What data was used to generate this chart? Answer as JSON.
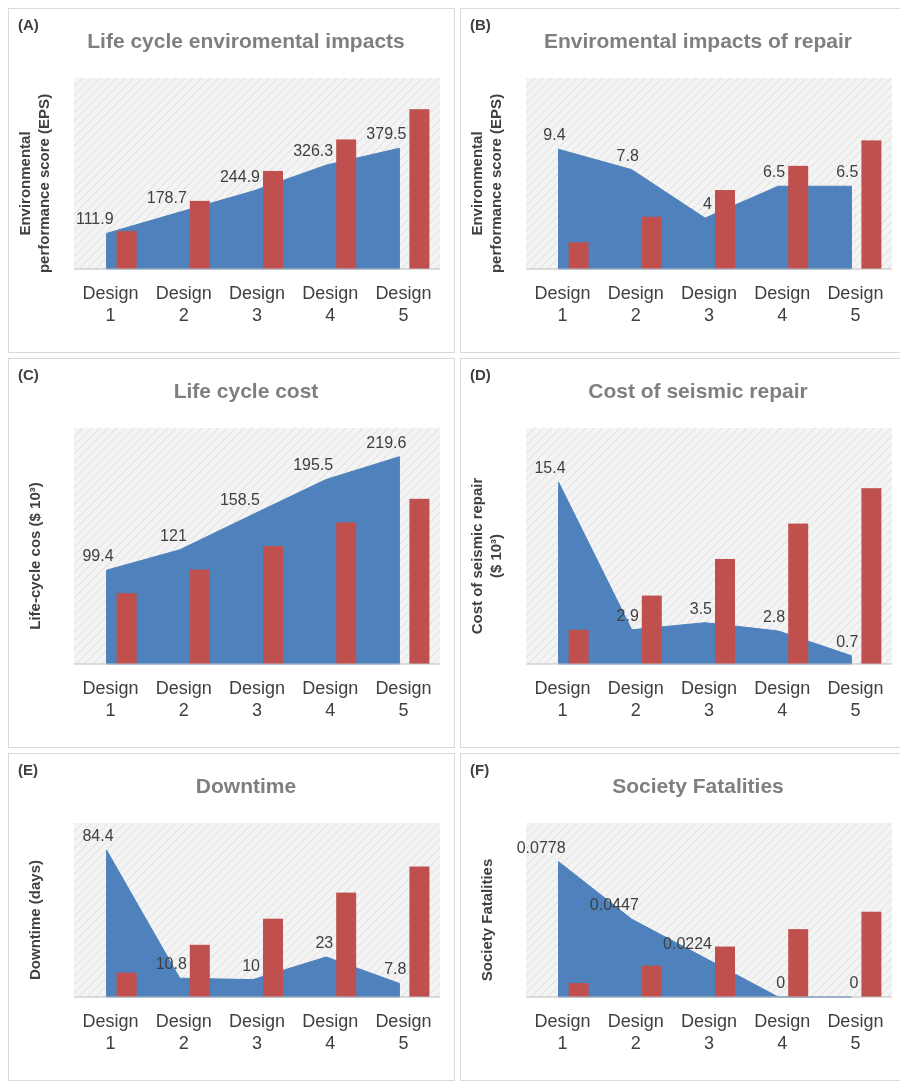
{
  "chart_data": [
    {
      "type": "bar",
      "title": "Life cycle enviromental impacts",
      "ylabel": "Environmental performance score (EPS)",
      "annotations": [
        "(A)"
      ],
      "ylim": [
        0,
        600
      ],
      "categories": [
        "Design 1",
        "Design 2",
        "Design 3",
        "Design 4",
        "Design 5"
      ],
      "series": [
        {
          "type": "area",
          "color": "#4f81bd",
          "values": [
            111.9,
            178.7,
            244.9,
            326.3,
            379.5
          ],
          "value_labels": [
            "111.9",
            "178.7",
            "244.9",
            "326.3",
            "379.5"
          ]
        },
        {
          "color": "#c0504d",
          "values": [
            119,
            214,
            308,
            407,
            502
          ]
        }
      ]
    },
    {
      "type": "bar",
      "title": "Enviromental impacts of repair",
      "ylabel": "Environmental performance score (EPS)",
      "annotations": [
        "(B)"
      ],
      "ylim": [
        0,
        15
      ],
      "categories": [
        "Design 1",
        "Design 2",
        "Design 3",
        "Design 4",
        "Design 5"
      ],
      "series": [
        {
          "type": "area",
          "color": "#4f81bd",
          "values": [
            9.4,
            7.8,
            4,
            6.5,
            6.5
          ],
          "value_labels": [
            "9.4",
            "7.8",
            "4",
            "6.5",
            "6.5"
          ]
        },
        {
          "color": "#c0504d",
          "values": [
            2.1,
            4.1,
            6.2,
            8.1,
            10.1
          ]
        }
      ]
    },
    {
      "type": "bar",
      "title": "Life cycle cost",
      "ylabel": "Life-cycle cos ($ 10³)",
      "annotations": [
        "(C)"
      ],
      "ylim": [
        0,
        250
      ],
      "categories": [
        "Design 1",
        "Design 2",
        "Design 3",
        "Design 4",
        "Design 5"
      ],
      "series": [
        {
          "type": "area",
          "color": "#4f81bd",
          "values": [
            99.4,
            121,
            158.5,
            195.5,
            219.6
          ],
          "value_labels": [
            "99.4",
            "121",
            "158.5",
            "195.5",
            "219.6"
          ]
        },
        {
          "color": "#c0504d",
          "values": [
            75,
            100,
            125,
            150,
            175
          ]
        }
      ]
    },
    {
      "type": "bar",
      "title": "Cost of seismic repair",
      "ylabel": "Cost of seismic repair ($ 10³)",
      "annotations": [
        "(D)"
      ],
      "ylim": [
        0,
        20
      ],
      "categories": [
        "Design 1",
        "Design 2",
        "Design 3",
        "Design 4",
        "Design 5"
      ],
      "series": [
        {
          "type": "area",
          "color": "#4f81bd",
          "values": [
            15.4,
            2.9,
            3.5,
            2.8,
            0.7
          ],
          "value_labels": [
            "15.4",
            "2.9",
            "3.5",
            "2.8",
            "0.7"
          ]
        },
        {
          "color": "#c0504d",
          "values": [
            2.9,
            5.8,
            8.9,
            11.9,
            14.9
          ]
        }
      ]
    },
    {
      "type": "bar",
      "title": "Downtime",
      "ylabel": "Downtime (days)",
      "annotations": [
        "(E)"
      ],
      "ylim": [
        0,
        100
      ],
      "categories": [
        "Design 1",
        "Design 2",
        "Design 3",
        "Design 4",
        "Design 5"
      ],
      "series": [
        {
          "type": "area",
          "color": "#4f81bd",
          "values": [
            84.4,
            10.8,
            10,
            23,
            7.8
          ],
          "value_labels": [
            "84.4",
            "10.8",
            "10",
            "23",
            "7.8"
          ]
        },
        {
          "color": "#c0504d",
          "values": [
            14,
            30,
            45,
            60,
            75
          ]
        }
      ]
    },
    {
      "type": "bar",
      "title": "Society Fatalities",
      "ylabel": "Society Fatalities",
      "annotations": [
        "(F)"
      ],
      "ylim": [
        0,
        0.1
      ],
      "categories": [
        "Design 1",
        "Design 2",
        "Design 3",
        "Design 4",
        "Design 5"
      ],
      "series": [
        {
          "type": "area",
          "color": "#4f81bd",
          "values": [
            0.0778,
            0.0447,
            0.0224,
            0,
            0
          ],
          "value_labels": [
            "0.0778",
            "0.0447",
            "0.0224",
            "0",
            "0"
          ]
        },
        {
          "color": "#c0504d",
          "values": [
            0.008,
            0.018,
            0.029,
            0.039,
            0.049
          ]
        }
      ]
    }
  ]
}
